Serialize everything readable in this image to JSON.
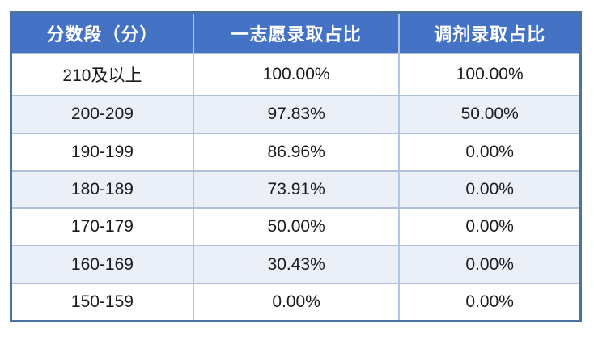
{
  "colors": {
    "header_bg": "#4472c4",
    "header_text": "#ffffff",
    "row_bg": "#ffffff",
    "row_alt_bg": "#eaeff8",
    "grid_line": "#b0bfdb",
    "column_line": "#b4c6e7",
    "outer_border": "#4a73a1",
    "body_text": "#1b1b1b"
  },
  "table": {
    "headers": [
      "分数段（分）",
      "一志愿录取占比",
      "调剂录取占比"
    ],
    "rows": [
      {
        "range": "210及以上",
        "first_choice": "100.00%",
        "adjustment": "100.00%"
      },
      {
        "range": "200-209",
        "first_choice": "97.83%",
        "adjustment": "50.00%"
      },
      {
        "range": "190-199",
        "first_choice": "86.96%",
        "adjustment": "0.00%"
      },
      {
        "range": "180-189",
        "first_choice": "73.91%",
        "adjustment": "0.00%"
      },
      {
        "range": "170-179",
        "first_choice": "50.00%",
        "adjustment": "0.00%"
      },
      {
        "range": "160-169",
        "first_choice": "30.43%",
        "adjustment": "0.00%"
      },
      {
        "range": "150-159",
        "first_choice": "0.00%",
        "adjustment": "0.00%"
      }
    ]
  },
  "chart_data": {
    "type": "table",
    "title": "",
    "columns": [
      "分数段（分）",
      "一志愿录取占比",
      "调剂录取占比"
    ],
    "rows": [
      [
        "210及以上",
        "100.00%",
        "100.00%"
      ],
      [
        "200-209",
        "97.83%",
        "50.00%"
      ],
      [
        "190-199",
        "86.96%",
        "0.00%"
      ],
      [
        "180-189",
        "73.91%",
        "0.00%"
      ],
      [
        "170-179",
        "50.00%",
        "0.00%"
      ],
      [
        "160-169",
        "30.43%",
        "0.00%"
      ],
      [
        "150-159",
        "0.00%",
        "0.00%"
      ]
    ],
    "series": [
      {
        "name": "一志愿录取占比",
        "values": [
          100.0,
          97.83,
          86.96,
          73.91,
          50.0,
          30.43,
          0.0
        ]
      },
      {
        "name": "调剂录取占比",
        "values": [
          100.0,
          50.0,
          0.0,
          0.0,
          0.0,
          0.0,
          0.0
        ]
      }
    ],
    "categories": [
      "210及以上",
      "200-209",
      "190-199",
      "180-189",
      "170-179",
      "160-169",
      "150-159"
    ]
  }
}
